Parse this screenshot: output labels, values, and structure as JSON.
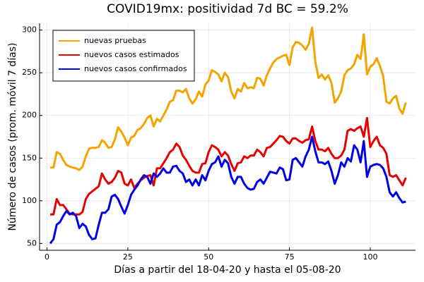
{
  "chart_data": {
    "type": "line",
    "title": "COVID19mx: positividad 7d BC = 59.2%",
    "xlabel": "Días a partir del 18-04-20 y hasta el 05-08-20",
    "ylabel": "Número de casos (prom. móvil 7 días)",
    "x": [
      1,
      2,
      3,
      4,
      5,
      6,
      7,
      8,
      9,
      10,
      11,
      12,
      13,
      14,
      15,
      16,
      17,
      18,
      19,
      20,
      21,
      22,
      23,
      24,
      25,
      26,
      27,
      28,
      29,
      30,
      31,
      32,
      33,
      34,
      35,
      36,
      37,
      38,
      39,
      40,
      41,
      42,
      43,
      44,
      45,
      46,
      47,
      48,
      49,
      50,
      51,
      52,
      53,
      54,
      55,
      56,
      57,
      58,
      59,
      60,
      61,
      62,
      63,
      64,
      65,
      66,
      67,
      68,
      69,
      70,
      71,
      72,
      73,
      74,
      75,
      76,
      77,
      78,
      79,
      80,
      81,
      82,
      83,
      84,
      85,
      86,
      87,
      88,
      89,
      90,
      91,
      92,
      93,
      94,
      95,
      96,
      97,
      98,
      99,
      100,
      101,
      102,
      103,
      104,
      105,
      106,
      107,
      108,
      109,
      110,
      111
    ],
    "series": [
      {
        "name": "nuevas pruebas",
        "color": "#f5a300",
        "values": [
          139,
          139,
          157,
          155,
          148,
          142,
          140,
          139,
          138,
          136,
          140,
          152,
          161,
          162,
          162,
          163,
          171,
          168,
          162,
          163,
          172,
          186,
          181,
          174,
          165,
          174,
          176,
          183,
          185,
          190,
          197,
          200,
          187,
          196,
          193,
          200,
          207,
          216,
          218,
          229,
          229,
          227,
          231,
          220,
          214,
          219,
          228,
          222,
          236,
          241,
          253,
          251,
          248,
          240,
          250,
          245,
          228,
          220,
          231,
          228,
          238,
          232,
          233,
          232,
          244,
          243,
          235,
          247,
          255,
          262,
          266,
          268,
          270,
          271,
          259,
          280,
          286,
          285,
          282,
          277,
          284,
          303,
          263,
          244,
          248,
          242,
          247,
          238,
          215,
          220,
          228,
          247,
          253,
          255,
          260,
          271,
          266,
          295,
          248,
          257,
          260,
          267,
          258,
          246,
          216,
          214,
          220,
          223,
          208,
          202,
          215
        ]
      },
      {
        "name": "nuevos casos estimados",
        "color": "#e60000",
        "values": [
          84,
          84,
          102,
          95,
          95,
          90,
          85,
          84,
          84,
          84,
          87,
          102,
          108,
          111,
          114,
          117,
          132,
          125,
          120,
          122,
          127,
          135,
          133,
          120,
          118,
          125,
          115,
          120,
          124,
          127,
          129,
          130,
          118,
          138,
          138,
          144,
          150,
          157,
          160,
          167,
          163,
          153,
          148,
          141,
          135,
          133,
          133,
          143,
          144,
          157,
          165,
          163,
          160,
          152,
          157,
          153,
          143,
          135,
          144,
          145,
          152,
          150,
          153,
          153,
          160,
          157,
          152,
          162,
          163,
          167,
          171,
          176,
          175,
          170,
          167,
          173,
          173,
          170,
          168,
          171,
          172,
          187,
          170,
          160,
          160,
          158,
          162,
          155,
          150,
          150,
          153,
          160,
          182,
          184,
          182,
          185,
          187,
          175,
          197,
          163,
          170,
          175,
          165,
          162,
          155,
          130,
          128,
          130,
          124,
          118,
          127
        ]
      },
      {
        "name": "nuevos casos confirmados",
        "color": "#0000e6",
        "values": [
          50,
          55,
          72,
          75,
          82,
          88,
          84,
          86,
          82,
          68,
          73,
          70,
          60,
          55,
          56,
          72,
          86,
          86,
          90,
          105,
          107,
          102,
          93,
          85,
          95,
          107,
          113,
          118,
          125,
          130,
          128,
          120,
          132,
          128,
          132,
          138,
          133,
          133,
          140,
          141,
          135,
          132,
          122,
          125,
          118,
          125,
          118,
          130,
          124,
          135,
          143,
          145,
          152,
          140,
          148,
          144,
          128,
          120,
          128,
          128,
          120,
          115,
          113,
          114,
          122,
          125,
          120,
          127,
          134,
          133,
          132,
          139,
          137,
          124,
          125,
          148,
          150,
          145,
          140,
          152,
          160,
          175,
          158,
          145,
          145,
          143,
          146,
          135,
          120,
          130,
          145,
          140,
          150,
          146,
          165,
          160,
          145,
          170,
          128,
          140,
          142,
          143,
          142,
          138,
          128,
          110,
          105,
          110,
          103,
          98,
          99
        ]
      }
    ],
    "xlim": [
      -2.3,
      114
    ],
    "xticks": [
      0,
      25,
      50,
      75,
      100
    ],
    "ylim": [
      42,
      308
    ],
    "yticks": [
      50,
      100,
      150,
      200,
      250,
      300
    ],
    "grid": true,
    "legend": "top left"
  }
}
